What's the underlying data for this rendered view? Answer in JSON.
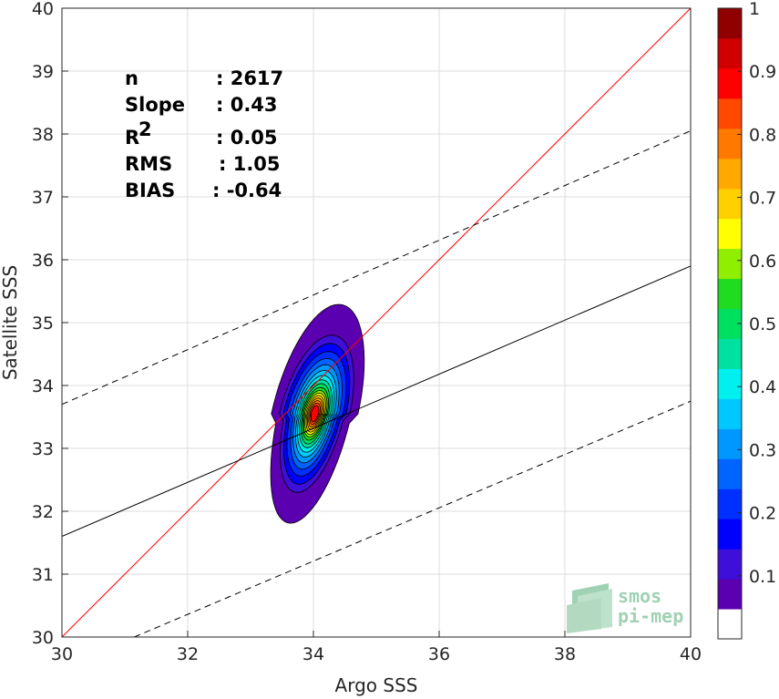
{
  "chart_data": {
    "type": "heatmap",
    "subtype": "density-contour scatter comparison",
    "xlabel": "Argo SSS",
    "ylabel": "Satellite SSS",
    "xlim": [
      30,
      40
    ],
    "ylim": [
      30,
      40
    ],
    "xticks": [
      "30",
      "32",
      "34",
      "36",
      "38",
      "40"
    ],
    "yticks": [
      "30",
      "31",
      "32",
      "33",
      "34",
      "35",
      "36",
      "37",
      "38",
      "39",
      "40"
    ],
    "grid": true,
    "stats": [
      {
        "label": "n",
        "value": ": 2617"
      },
      {
        "label": "Slope",
        "value": ": 0.43"
      },
      {
        "label": "R",
        "sup": "2",
        "value": ": 0.05"
      },
      {
        "label": "RMS",
        "value": ": 1.05"
      },
      {
        "label": "BIAS",
        "value": ": -0.64"
      }
    ],
    "lines": [
      {
        "kind": "identity",
        "color": "#ff0000",
        "style": "solid",
        "x": [
          30,
          40
        ],
        "y": [
          30,
          40
        ]
      },
      {
        "kind": "regression",
        "color": "#000000",
        "style": "solid",
        "x": [
          30,
          40
        ],
        "y": [
          31.6,
          35.9
        ]
      },
      {
        "kind": "upper-bound",
        "color": "#000000",
        "style": "dashed",
        "x": [
          30,
          40
        ],
        "y": [
          33.7,
          38.05
        ]
      },
      {
        "kind": "lower-bound",
        "color": "#000000",
        "style": "dashed",
        "x": [
          31.15,
          40
        ],
        "y": [
          30,
          33.75
        ]
      }
    ],
    "density_center": [
      34.02,
      33.55
    ],
    "density_levels": [
      {
        "level": 0.05,
        "rx": 0.69,
        "ry": 1.74
      },
      {
        "level": 0.1,
        "rx": 0.56,
        "ry": 1.25
      },
      {
        "level": 0.15,
        "rx": 0.5,
        "ry": 1.12
      },
      {
        "level": 0.2,
        "rx": 0.45,
        "ry": 0.99
      },
      {
        "level": 0.25,
        "rx": 0.39,
        "ry": 0.88
      },
      {
        "level": 0.3,
        "rx": 0.35,
        "ry": 0.78
      },
      {
        "level": 0.35,
        "rx": 0.31,
        "ry": 0.69
      },
      {
        "level": 0.4,
        "rx": 0.28,
        "ry": 0.61
      },
      {
        "level": 0.45,
        "rx": 0.25,
        "ry": 0.54
      },
      {
        "level": 0.5,
        "rx": 0.22,
        "ry": 0.48
      },
      {
        "level": 0.55,
        "rx": 0.2,
        "ry": 0.42
      },
      {
        "level": 0.6,
        "rx": 0.18,
        "ry": 0.37
      },
      {
        "level": 0.65,
        "rx": 0.16,
        "ry": 0.33
      },
      {
        "level": 0.7,
        "rx": 0.14,
        "ry": 0.29
      },
      {
        "level": 0.75,
        "rx": 0.12,
        "ry": 0.25
      },
      {
        "level": 0.8,
        "rx": 0.1,
        "ry": 0.21
      },
      {
        "level": 0.85,
        "rx": 0.08,
        "ry": 0.17
      },
      {
        "level": 0.9,
        "rx": 0.06,
        "ry": 0.13
      }
    ],
    "colorbar": {
      "ticks": [
        "0.1",
        "0.2",
        "0.3",
        "0.4",
        "0.5",
        "0.6",
        "0.7",
        "0.8",
        "0.9",
        "1"
      ],
      "tick_values": [
        0.1,
        0.2,
        0.3,
        0.4,
        0.5,
        0.6,
        0.7,
        0.8,
        0.9,
        1.0
      ],
      "range": [
        0,
        1
      ],
      "colors": [
        "#ffffff",
        "#5b00b0",
        "#3d0fd8",
        "#0000ff",
        "#0030ff",
        "#0064ff",
        "#0098ff",
        "#00c8ff",
        "#00f0f0",
        "#00e0a0",
        "#00e060",
        "#20dc20",
        "#90ee00",
        "#ffff00",
        "#ffd000",
        "#ffa800",
        "#ff7800",
        "#ff4800",
        "#ff0000",
        "#d00000",
        "#900000"
      ]
    }
  },
  "logo": {
    "line1": "smos",
    "line2": "pi-mep"
  }
}
